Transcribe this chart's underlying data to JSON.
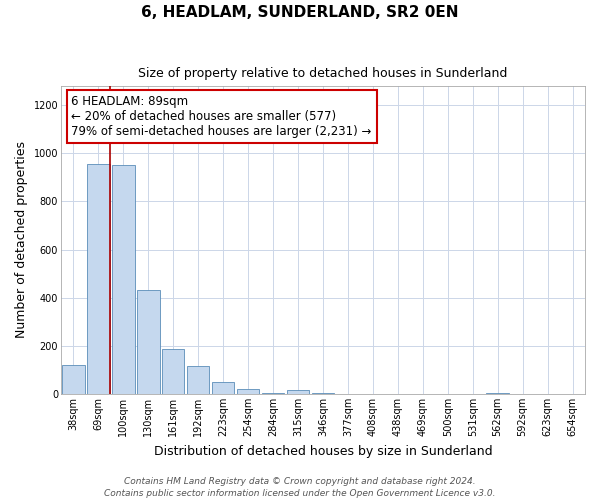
{
  "title": "6, HEADLAM, SUNDERLAND, SR2 0EN",
  "subtitle": "Size of property relative to detached houses in Sunderland",
  "xlabel": "Distribution of detached houses by size in Sunderland",
  "ylabel": "Number of detached properties",
  "bar_labels": [
    "38sqm",
    "69sqm",
    "100sqm",
    "130sqm",
    "161sqm",
    "192sqm",
    "223sqm",
    "254sqm",
    "284sqm",
    "315sqm",
    "346sqm",
    "377sqm",
    "408sqm",
    "438sqm",
    "469sqm",
    "500sqm",
    "531sqm",
    "562sqm",
    "592sqm",
    "623sqm",
    "654sqm"
  ],
  "bar_values": [
    120,
    955,
    950,
    430,
    185,
    115,
    48,
    20,
    5,
    15,
    5,
    0,
    0,
    0,
    0,
    0,
    0,
    5,
    0,
    0,
    0
  ],
  "bar_color": "#c5d8ee",
  "bar_edge_color": "#5b8db8",
  "ylim": [
    0,
    1280
  ],
  "yticks": [
    0,
    200,
    400,
    600,
    800,
    1000,
    1200
  ],
  "property_line_color": "#aa0000",
  "annotation_line1": "6 HEADLAM: 89sqm",
  "annotation_line2": "← 20% of detached houses are smaller (577)",
  "annotation_line3": "79% of semi-detached houses are larger (2,231) →",
  "annotation_box_color": "#ffffff",
  "annotation_box_edge_color": "#cc0000",
  "footnote": "Contains HM Land Registry data © Crown copyright and database right 2024.\nContains public sector information licensed under the Open Government Licence v3.0.",
  "bg_color": "#ffffff",
  "grid_color": "#ccd6e8",
  "title_fontsize": 11,
  "subtitle_fontsize": 9,
  "axis_label_fontsize": 9,
  "tick_fontsize": 7,
  "annotation_fontsize": 8.5,
  "footnote_fontsize": 6.5
}
